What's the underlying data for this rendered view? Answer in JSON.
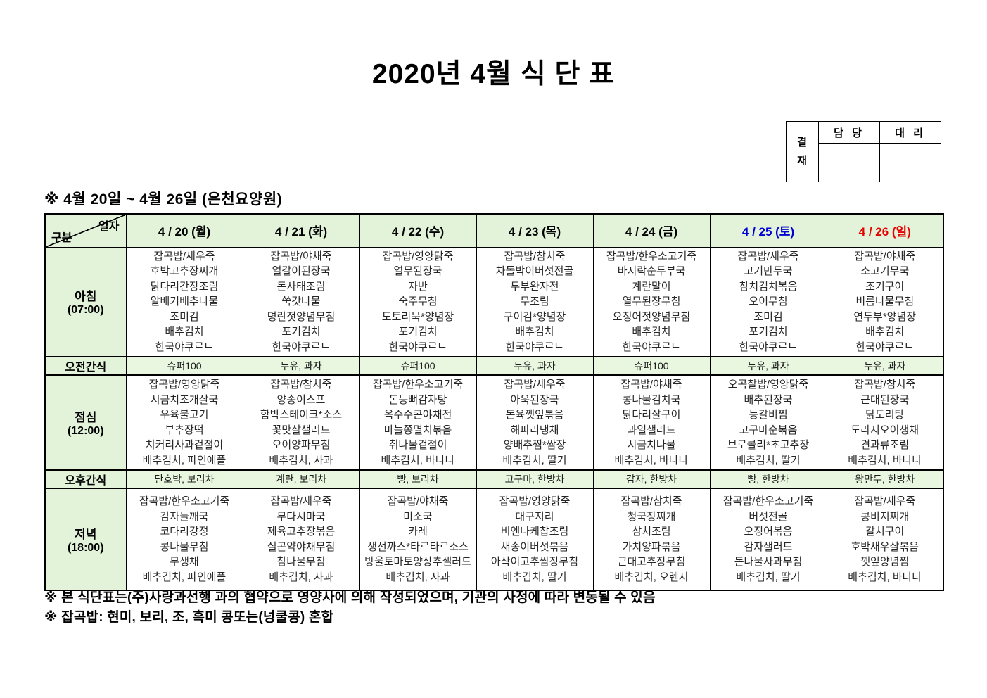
{
  "title": "2020년 4월 식 단 표",
  "approval": {
    "label_chars": [
      "결",
      "재"
    ],
    "columns": [
      "담 당",
      "대 리"
    ]
  },
  "subtitle": "※ 4월 20일 ~ 4월 26일 (은천요양원)",
  "corner": {
    "top": "일자",
    "bottom": "구분"
  },
  "colors": {
    "header_green": "#e2f3d9",
    "weekday_black": "#000000",
    "saturday_blue": "#0000d4",
    "sunday_red": "#e60000"
  },
  "days": [
    {
      "label": "4 / 20 (월)",
      "color": "#000000"
    },
    {
      "label": "4 / 21 (화)",
      "color": "#000000"
    },
    {
      "label": "4 / 22 (수)",
      "color": "#000000"
    },
    {
      "label": "4 / 23 (목)",
      "color": "#000000"
    },
    {
      "label": "4 / 24 (금)",
      "color": "#000000"
    },
    {
      "label": "4 / 25 (토)",
      "color": "#0000d4"
    },
    {
      "label": "4 / 26 (일)",
      "color": "#e60000"
    }
  ],
  "rows": [
    {
      "type": "meal",
      "height_class": "row-h-breakfast",
      "label": "아침",
      "time": "(07:00)",
      "cells": [
        [
          "잡곡밥/새우죽",
          "호박고추장찌개",
          "닭다리간장조림",
          "알배기배추나물",
          "조미김",
          "배추김치",
          "한국야쿠르트"
        ],
        [
          "잡곡밥/야채죽",
          "얼갈이된장국",
          "돈사태조림",
          "쑥갓나물",
          "명란젓양념무침",
          "포기김치",
          "한국야쿠르트"
        ],
        [
          "잡곡밥/영양닭죽",
          "열무된장국",
          "자반",
          "숙주무침",
          "도토리묵*양념장",
          "포기김치",
          "한국야쿠르트"
        ],
        [
          "잡곡밥/참치죽",
          "차돌박이버섯전골",
          "두부완자전",
          "무조림",
          "구이김*양념장",
          "배추김치",
          "한국야쿠르트"
        ],
        [
          "잡곡밥/한우소고기죽",
          "바지락순두부국",
          "계란말이",
          "열무된장무침",
          "오징어젓양념무침",
          "배추김치",
          "한국야쿠르트"
        ],
        [
          "잡곡밥/새우죽",
          "고기만두국",
          "참치김치볶음",
          "오이무침",
          "조미김",
          "포기김치",
          "한국야쿠르트"
        ],
        [
          "잡곡밥/야채죽",
          "소고기무국",
          "조기구이",
          "비름나물무침",
          "연두부*양념장",
          "배추김치",
          "한국야쿠르트"
        ]
      ]
    },
    {
      "type": "snack",
      "height_class": "row-h-amsnack",
      "label": "오전간식",
      "cells": [
        "슈퍼100",
        "두유, 과자",
        "슈퍼100",
        "두유, 과자",
        "슈퍼100",
        "두유, 과자",
        "두유, 과자"
      ]
    },
    {
      "type": "meal",
      "height_class": "row-h-lunch",
      "label": "점심",
      "time": "(12:00)",
      "cells": [
        [
          "잡곡밥/영양닭죽",
          "시금치조개살국",
          "우육불고기",
          "부추장떡",
          "치커리사과겉절이",
          "배추김치, 파인애플"
        ],
        [
          "잡곡밥/참치죽",
          "양송이스프",
          "함박스테이크*소스",
          "꽃맛살샐러드",
          "오이양파무침",
          "배추김치, 사과"
        ],
        [
          "잡곡밥/한우소고기죽",
          "돈등뼈감자탕",
          "옥수수콘야채전",
          "마늘쫑멸치볶음",
          "취나물겉절이",
          "배추김치, 바나나"
        ],
        [
          "잡곡밥/새우죽",
          "아욱된장국",
          "돈육깻잎볶음",
          "해파리냉채",
          "양배추찜*쌈장",
          "배추김치, 딸기"
        ],
        [
          "잡곡밥/야채죽",
          "콩나물김치국",
          "닭다리살구이",
          "과일샐러드",
          "시금치나물",
          "배추김치, 바나나"
        ],
        [
          "오곡찰밥/영양닭죽",
          "배추된장국",
          "등갈비찜",
          "고구마순볶음",
          "브로콜리*초고추장",
          "배추김치, 딸기"
        ],
        [
          "잡곡밥/참치죽",
          "근대된장국",
          "닭도리탕",
          "도라지오이생채",
          "견과류조림",
          "배추김치, 바나나"
        ]
      ]
    },
    {
      "type": "snack",
      "height_class": "row-h-pmsnack",
      "label": "오후간식",
      "cells": [
        "단호박, 보리차",
        "계란, 보리차",
        "빵, 보리차",
        "고구마, 한방차",
        "감자, 한방차",
        "빵, 한방차",
        "왕만두, 한방차"
      ]
    },
    {
      "type": "meal",
      "height_class": "row-h-dinner",
      "label": "저녁",
      "time": "(18:00)",
      "cells": [
        [
          "잡곡밥/한우소고기죽",
          "감자들깨국",
          "코다리강정",
          "콩나물무침",
          "무생채",
          "배추김치, 파인애플"
        ],
        [
          "잡곡밥/새우죽",
          "무다시마국",
          "제육고추장볶음",
          "실곤약야채무침",
          "참나물무침",
          "배추김치, 사과"
        ],
        [
          "잡곡밥/야채죽",
          "미소국",
          "카레",
          "생선까스*타르타르소스",
          "방울토마토양상추샐러드",
          "배추김치, 사과"
        ],
        [
          "잡곡밥/영양닭죽",
          "대구지리",
          "비엔나케찹조림",
          "새송이버섯볶음",
          "아삭이고추쌈장무침",
          "배추김치, 딸기"
        ],
        [
          "잡곡밥/참치죽",
          "청국장찌개",
          "삼치조림",
          "가치양파볶음",
          "근대고추장무침",
          "배추김치, 오렌지"
        ],
        [
          "잡곡밥/한우소고기죽",
          "버섯전골",
          "오징어볶음",
          "감자샐러드",
          "돈나물사과무침",
          "배추김치, 딸기"
        ],
        [
          "잡곡밥/새우죽",
          "콩비지찌개",
          "갈치구이",
          "호박새우살볶음",
          "깻잎양념찜",
          "배추김치, 바나나"
        ]
      ]
    }
  ],
  "notes": [
    "※ 본 식단표는(주)사랑과선행 과의 협약으로 영양사에 의해 작성되었으며, 기관의 사정에 따라 변동될 수 있음",
    "※ 잡곡밥: 현미, 보리, 조, 흑미 콩또는(넝쿨콩) 혼합"
  ]
}
